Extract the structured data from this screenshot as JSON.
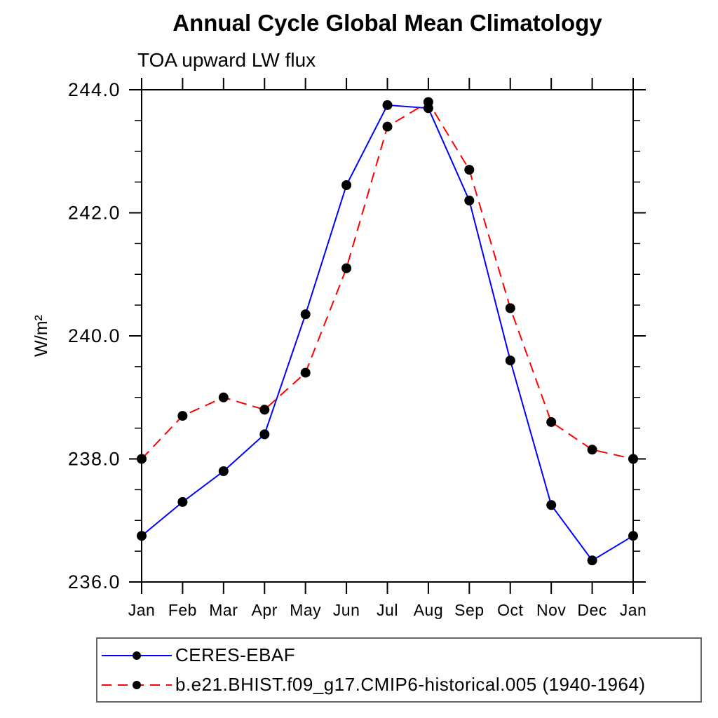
{
  "chart_data": {
    "type": "line",
    "title": "Annual Cycle Global Mean Climatology",
    "subtitle": "TOA upward LW flux",
    "ylabel": "W/m²",
    "xlabel": "",
    "categories": [
      "Jan",
      "Feb",
      "Mar",
      "Apr",
      "May",
      "Jun",
      "Jul",
      "Aug",
      "Sep",
      "Oct",
      "Nov",
      "Dec",
      "Jan"
    ],
    "series": [
      {
        "name": "CERES-EBAF",
        "color": "#0000ff",
        "line_style": "solid",
        "marker": "filled-circle",
        "values": [
          236.75,
          237.3,
          237.8,
          238.4,
          240.35,
          242.45,
          243.75,
          243.7,
          242.2,
          239.6,
          237.25,
          236.35,
          236.75
        ]
      },
      {
        "name": "b.e21.BHIST.f09_g17.CMIP6-historical.005 (1940-1964)",
        "color": "#ff0000",
        "line_style": "dashed",
        "marker": "filled-circle",
        "values": [
          238.0,
          238.7,
          239.0,
          238.8,
          239.4,
          241.1,
          243.4,
          243.8,
          242.7,
          240.45,
          238.6,
          238.15,
          238.0
        ]
      }
    ],
    "ylim": [
      236.0,
      244.0
    ],
    "ytick_values": [
      236.0,
      238.0,
      240.0,
      242.0,
      244.0
    ],
    "ytick_labels": [
      "236.0",
      "238.0",
      "240.0",
      "242.0",
      "244.0"
    ],
    "ytick_minor_step": 0.5,
    "grid": false,
    "legend_position": "bottom-left-box",
    "marker_color": "#000000",
    "axis_color": "#000000"
  }
}
